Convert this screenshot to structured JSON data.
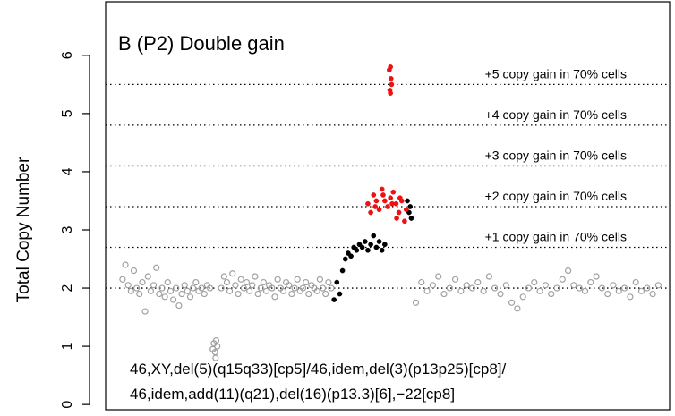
{
  "chart_data": {
    "type": "scatter",
    "title": "B  (P2) Double gain",
    "ylabel": "Total Copy Number",
    "xlim": [
      0,
      100
    ],
    "ylim": [
      -0.09,
      6.92
    ],
    "yticks": [
      0,
      1,
      2,
      3,
      4,
      5,
      6
    ],
    "reference_lines": [
      {
        "value": 2
      },
      {
        "value": 2.7,
        "label": "+1 copy gain in 70% cells"
      },
      {
        "value": 3.4,
        "label": "+2 copy gain in 70% cells"
      },
      {
        "value": 4.1,
        "label": "+3 copy gain in 70% cells"
      },
      {
        "value": 4.8,
        "label": "+4 copy gain in 70% cells"
      },
      {
        "value": 5.5,
        "label": "+5 copy gain in 70% cells"
      }
    ],
    "annotations": [
      "46,XY,del(5)(q15q33)[cp5]/46,idem,del(3)(p13p25)[cp8]/",
      "46,idem,add(11)(q21),del(16)(p13.3)[6],−22[cp8]"
    ],
    "series": [
      {
        "color": "#a0a0a0",
        "x": [
          3,
          3.5,
          4,
          4.5,
          5,
          5.5,
          6,
          6.5,
          7,
          7.5,
          8,
          8.5,
          9,
          9.5,
          10,
          10.5,
          11,
          11.5,
          12,
          12.5,
          13,
          13.5,
          14,
          14.5,
          15,
          15.5,
          16,
          16.5,
          17,
          17.5,
          18,
          18.5,
          19,
          19.2,
          19.4,
          19.6,
          19.8,
          19.5,
          20.5,
          21,
          21.5,
          22,
          22.5,
          23,
          23.5,
          24,
          24.5,
          25,
          25.5,
          26,
          26.5,
          27,
          27.5,
          28,
          28.5,
          29,
          29.5,
          30,
          30.5,
          31,
          31.5,
          32,
          32.5,
          33,
          33.5,
          34,
          34.5,
          35,
          35.5,
          36,
          36.5,
          37,
          37.5,
          38,
          38.5,
          39,
          39.5,
          40,
          55,
          56,
          57,
          58,
          59,
          60,
          61,
          62,
          63,
          64,
          65,
          66,
          67,
          68,
          69,
          70,
          71,
          72,
          73,
          74,
          75,
          76,
          77,
          78,
          79,
          80,
          81,
          82,
          83,
          84,
          85,
          86,
          87,
          88,
          89,
          90,
          91,
          92,
          93,
          94,
          95,
          96,
          97,
          98
        ],
        "values": [
          2.15,
          2.4,
          2.05,
          1.95,
          2.3,
          2.0,
          1.9,
          2.1,
          1.6,
          2.2,
          1.95,
          2.05,
          2.35,
          1.9,
          2.0,
          1.85,
          2.1,
          1.95,
          1.8,
          2.0,
          1.7,
          1.9,
          2.05,
          1.95,
          1.85,
          2.0,
          2.1,
          1.95,
          2.0,
          1.9,
          2.05,
          2.0,
          0.95,
          1.05,
          0.9,
          1.1,
          1.0,
          0.8,
          2.0,
          2.2,
          2.1,
          1.95,
          2.25,
          2.05,
          1.9,
          2.15,
          2.0,
          2.1,
          1.95,
          2.05,
          2.2,
          1.9,
          2.0,
          2.1,
          1.95,
          2.05,
          2.0,
          1.85,
          2.15,
          2.0,
          1.95,
          2.1,
          2.05,
          1.9,
          2.0,
          2.15,
          1.95,
          2.0,
          2.1,
          1.9,
          2.05,
          2.0,
          1.95,
          2.15,
          2.0,
          1.9,
          2.1,
          2.0,
          1.75,
          2.1,
          1.95,
          2.05,
          2.2,
          1.9,
          2.0,
          2.15,
          1.95,
          2.05,
          2.0,
          2.1,
          1.95,
          2.2,
          2.0,
          1.9,
          2.05,
          1.75,
          1.65,
          1.85,
          2.0,
          2.1,
          1.95,
          2.05,
          1.9,
          2.0,
          2.15,
          2.3,
          2.05,
          2.0,
          1.95,
          2.1,
          2.2,
          2.0,
          1.9,
          2.05,
          1.95,
          2.0,
          1.85,
          2.1,
          1.95,
          2.0,
          1.9,
          2.05
        ]
      },
      {
        "color": "#000000",
        "x": [
          40.5,
          41,
          41.5,
          42,
          42.5,
          43,
          43.5,
          44,
          44.5,
          45,
          45.5,
          46,
          46.5,
          47,
          47.5,
          48,
          48.5,
          49,
          49.5,
          53.5,
          53.8,
          54,
          54.2
        ],
        "values": [
          1.8,
          2.1,
          1.9,
          2.3,
          2.5,
          2.6,
          2.55,
          2.7,
          2.65,
          2.75,
          2.7,
          2.8,
          2.65,
          2.75,
          2.9,
          2.7,
          2.8,
          2.65,
          2.75,
          3.5,
          3.3,
          3.4,
          3.2
        ]
      },
      {
        "color": "#ee1111",
        "x": [
          50.3,
          50.5,
          50.7,
          50.4,
          50.6,
          50.5,
          46.5,
          47,
          47.5,
          48,
          48.5,
          49,
          49.5,
          50,
          50.5,
          51,
          51.5,
          52,
          52.5,
          53,
          47.8,
          49.2,
          50.8,
          52.2,
          53.3,
          51.6
        ],
        "values": [
          5.75,
          5.8,
          5.5,
          5.4,
          5.6,
          5.35,
          3.45,
          3.3,
          3.6,
          3.5,
          3.35,
          3.7,
          3.5,
          3.4,
          3.55,
          3.65,
          3.45,
          3.3,
          3.5,
          3.15,
          3.4,
          3.6,
          3.45,
          3.55,
          3.35,
          3.2
        ]
      }
    ]
  }
}
